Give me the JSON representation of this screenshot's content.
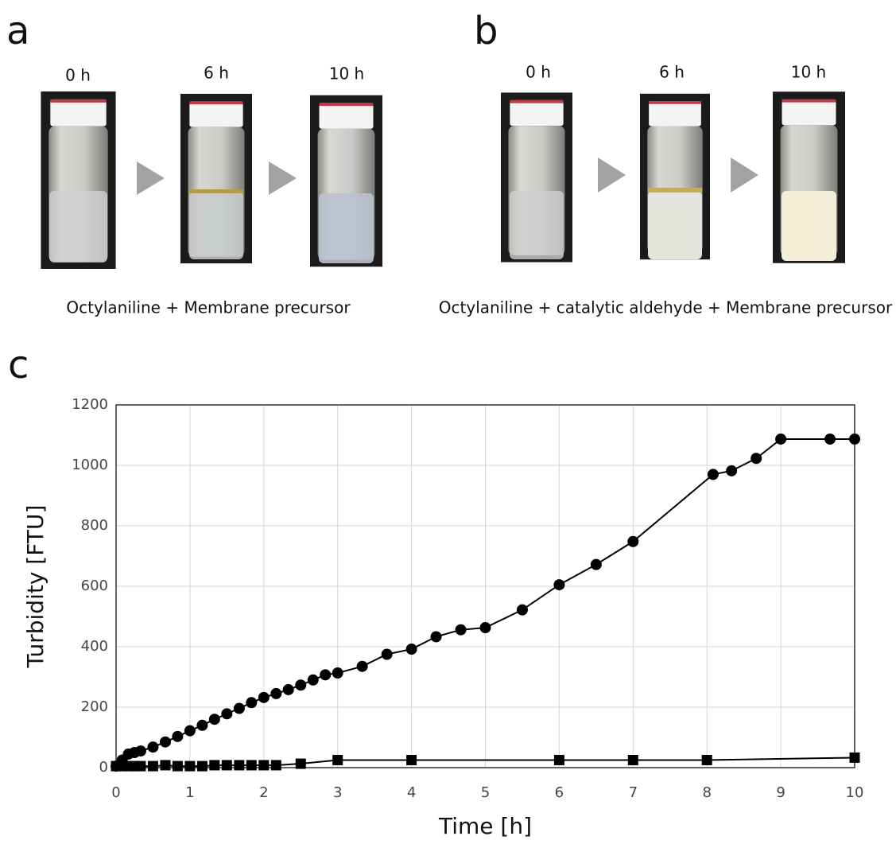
{
  "panels": [
    {
      "label": "a",
      "times": [
        "0 h",
        "6 h",
        "10 h"
      ],
      "caption": "Octylaniline + Membrane precursor"
    },
    {
      "label": "b",
      "times": [
        "0 h",
        "6 h",
        "10 h"
      ],
      "caption": "Octylaniline + catalytic aldehyde + Membrane precursor"
    }
  ],
  "chart_panel_label": "c",
  "chart_data": {
    "type": "line",
    "xlabel": "Time [h]",
    "ylabel": "Turbidity [FTU]",
    "xlim": [
      0,
      10
    ],
    "xticks": [
      0,
      1,
      2,
      3,
      4,
      5,
      6,
      7,
      8,
      9,
      10
    ],
    "ylim": [
      0,
      1200
    ],
    "yticks": [
      0,
      200,
      400,
      600,
      800,
      1000,
      1200
    ],
    "grid": true,
    "series": [
      {
        "marker": "circle",
        "color": "#000000",
        "x": [
          0,
          0.083,
          0.167,
          0.25,
          0.333,
          0.5,
          0.667,
          0.833,
          1,
          1.167,
          1.333,
          1.5,
          1.667,
          1.833,
          2,
          2.167,
          2.333,
          2.5,
          2.667,
          2.833,
          3,
          3.333,
          3.667,
          4,
          4.333,
          4.667,
          5,
          5.5,
          6,
          6.5,
          7,
          8.083,
          8.333,
          8.667,
          9,
          9.667,
          10
        ],
        "values": [
          5,
          25,
          45,
          50,
          55,
          68,
          85,
          103,
          122,
          140,
          160,
          178,
          196,
          215,
          232,
          245,
          258,
          273,
          290,
          307,
          313,
          335,
          375,
          392,
          433,
          456,
          463,
          522,
          605,
          672,
          748,
          970,
          982,
          1023,
          1087,
          1087,
          1087
        ]
      },
      {
        "marker": "square",
        "color": "#000000",
        "x": [
          0,
          0.083,
          0.167,
          0.25,
          0.333,
          0.5,
          0.667,
          0.833,
          1,
          1.167,
          1.333,
          1.5,
          1.667,
          1.833,
          2,
          2.167,
          2.5,
          3,
          4,
          6,
          7,
          8,
          10
        ],
        "values": [
          5,
          5,
          5,
          5,
          5,
          5,
          8,
          5,
          5,
          5,
          8,
          8,
          8,
          8,
          8,
          8,
          13,
          25,
          25,
          25,
          25,
          25,
          33
        ]
      }
    ]
  }
}
